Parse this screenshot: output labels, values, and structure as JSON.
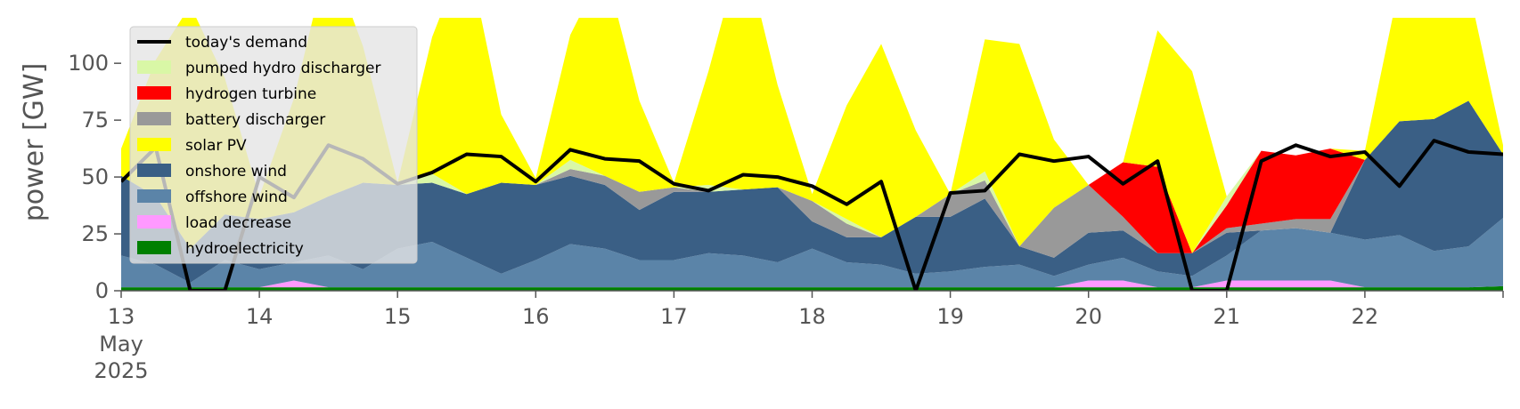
{
  "chart_data": {
    "type": "area",
    "title": "",
    "xlabel": "",
    "ylabel": "power [GW]",
    "ylim": [
      0,
      120
    ],
    "xlim": [
      0,
      10
    ],
    "yticks": [
      0,
      25,
      50,
      75,
      100
    ],
    "xticks": [
      {
        "x": 0,
        "label": "13"
      },
      {
        "x": 1,
        "label": "14"
      },
      {
        "x": 2,
        "label": "15"
      },
      {
        "x": 3,
        "label": "16"
      },
      {
        "x": 4,
        "label": "17"
      },
      {
        "x": 5,
        "label": "18"
      },
      {
        "x": 6,
        "label": "19"
      },
      {
        "x": 7,
        "label": "20"
      },
      {
        "x": 8,
        "label": "21"
      },
      {
        "x": 9,
        "label": "22"
      }
    ],
    "x_sublabels": [
      "May",
      "2025"
    ],
    "background": "#ffffff",
    "legend_position": "upper left",
    "x_points": [
      0,
      0.25,
      0.5,
      0.75,
      1,
      1.25,
      1.5,
      1.75,
      2,
      2.25,
      2.5,
      2.75,
      3,
      3.25,
      3.5,
      3.75,
      4,
      4.25,
      4.5,
      4.75,
      5,
      5.25,
      5.5,
      5.75,
      6,
      6.25,
      6.5,
      6.75,
      7,
      7.25,
      7.5,
      7.75,
      8,
      8.25,
      8.5,
      8.75,
      9,
      9.25,
      9.5,
      9.75,
      10
    ],
    "series": [
      {
        "name": "hydroelectricity",
        "color": "#008000",
        "values": [
          1.5,
          1.5,
          1.5,
          1.5,
          1.5,
          1.5,
          1.5,
          1.5,
          1.5,
          1.5,
          1.5,
          1.5,
          1.5,
          1.5,
          1.5,
          1.5,
          1.5,
          1.5,
          1.5,
          1.5,
          1.5,
          1.5,
          1.5,
          1.5,
          1.5,
          1.5,
          1.5,
          1.5,
          1.5,
          1.5,
          1.5,
          1.5,
          1.5,
          1.5,
          1.5,
          1.5,
          1.5,
          1.5,
          1.5,
          1.5,
          2
        ]
      },
      {
        "name": "load decrease",
        "color": "#ff99ff",
        "values": [
          0,
          0,
          0,
          0,
          0,
          3,
          0,
          0,
          0,
          0,
          0,
          0,
          0,
          0,
          0,
          0,
          0,
          0,
          0,
          0,
          0,
          0,
          0,
          0,
          0,
          0,
          0,
          0,
          3,
          3,
          0,
          0,
          3,
          3,
          3,
          3,
          0,
          0,
          0,
          0,
          0
        ]
      },
      {
        "name": "offshore wind",
        "color": "#5b84a8",
        "values": [
          14,
          10,
          2,
          12,
          8,
          8,
          14,
          8,
          17,
          20,
          13,
          6,
          12,
          19,
          17,
          12,
          12,
          15,
          14,
          11,
          17,
          11,
          10,
          6,
          7,
          9,
          10,
          5,
          7,
          10,
          7,
          5,
          11,
          22,
          23,
          21,
          21,
          23,
          16,
          18,
          30
        ]
      },
      {
        "name": "onshore wind",
        "color": "#3a5f85",
        "values": [
          35,
          30,
          15,
          20,
          22,
          22,
          26,
          38,
          28,
          26,
          28,
          40,
          33,
          30,
          28,
          22,
          30,
          27,
          29,
          33,
          12,
          11,
          12,
          25,
          24,
          30,
          8,
          8,
          14,
          12,
          8,
          10,
          10,
          0,
          0,
          0,
          35,
          50,
          58,
          64,
          28
        ]
      },
      {
        "name": "battery discharger",
        "color": "#999999",
        "values": [
          0,
          0,
          0,
          0,
          0,
          0,
          0,
          0,
          0,
          0,
          0,
          0,
          0,
          3,
          4,
          8,
          2,
          0,
          0,
          0,
          9,
          6,
          0,
          0,
          10,
          8,
          0,
          22,
          21,
          6,
          0,
          0,
          2,
          3,
          4,
          6,
          0,
          0,
          0,
          0,
          0
        ]
      },
      {
        "name": "hydrogen turbine",
        "color": "#ff0000",
        "values": [
          0,
          0,
          0,
          0,
          0,
          0,
          0,
          0,
          0,
          0,
          0,
          0,
          0,
          0,
          0,
          0,
          0,
          0,
          0,
          0,
          0,
          0,
          0,
          0,
          0,
          0,
          0,
          0,
          0,
          24,
          38,
          0,
          10,
          32,
          28,
          31,
          0,
          0,
          0,
          0,
          0
        ]
      },
      {
        "name": "pumped hydro discharger",
        "color": "#d9f7a6",
        "values": [
          0,
          0,
          0,
          0,
          0,
          0,
          0,
          0,
          0,
          4,
          0,
          0,
          0,
          4,
          0,
          0,
          0,
          3,
          0,
          0,
          0,
          2,
          0,
          0,
          0,
          4,
          0,
          0,
          0,
          0,
          0,
          0,
          4,
          0,
          0,
          0,
          0,
          0,
          0,
          0,
          0
        ]
      },
      {
        "name": "solar PV",
        "color": "#ffff00",
        "values": [
          12,
          60,
          107,
          60,
          10,
          50,
          107,
          60,
          1,
          60,
          108,
          30,
          3,
          55,
          92,
          40,
          2,
          50,
          108,
          45,
          3,
          50,
          85,
          38,
          0,
          58,
          89,
          30,
          0,
          0,
          60,
          80,
          0,
          0,
          0,
          0,
          4,
          60,
          90,
          50,
          4
        ]
      },
      {
        "name": "today's demand",
        "color": "#000000",
        "kind": "line",
        "values": [
          48,
          63,
          0,
          0,
          50,
          41,
          64,
          58,
          47,
          52,
          60,
          59,
          48,
          62,
          58,
          57,
          47,
          44,
          51,
          50,
          46,
          38,
          48,
          0,
          43,
          44,
          60,
          57,
          59,
          47,
          57,
          0,
          0,
          57,
          64,
          59,
          61,
          46,
          66,
          61,
          60
        ]
      }
    ]
  }
}
